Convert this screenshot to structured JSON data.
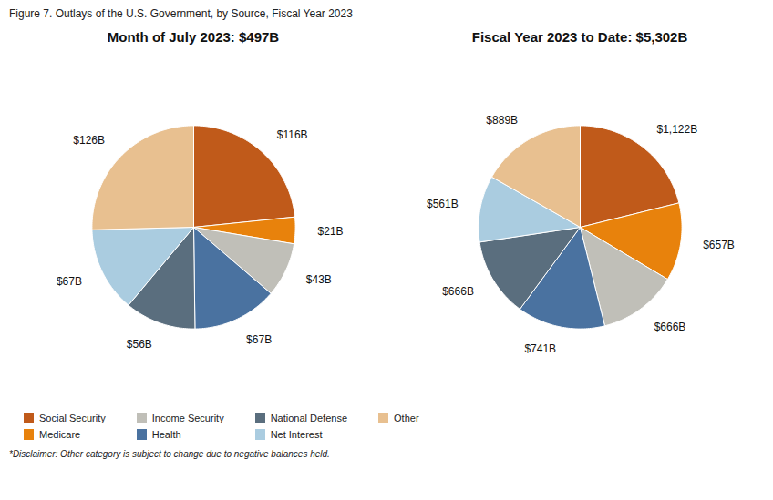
{
  "title": "Figure 7. Outlays of the U.S. Government, by Source, Fiscal Year 2023",
  "annotations": [
    "*Disclaimer: Other category is subject to change due to negative balances held."
  ],
  "chart_data": [
    {
      "type": "pie",
      "title": "Month of July 2023: $497B",
      "categories": [
        "Social Security",
        "Medicare",
        "Income Security",
        "Health",
        "National Defense",
        "Net Interest",
        "Other"
      ],
      "values": [
        116,
        21,
        43,
        67,
        56,
        67,
        126
      ],
      "value_labels": [
        "$116B",
        "$21B",
        "$43B",
        "$67B",
        "$56B",
        "$67B",
        "$126B"
      ],
      "colors": [
        "#C05A1A",
        "#E8820C",
        "#C0BFB8",
        "#4A72A0",
        "#5A6E7E",
        "#AACCE0",
        "#E8C090"
      ],
      "data_labels": true,
      "legend": "bottom"
    },
    {
      "type": "pie",
      "title": "Fiscal Year 2023 to Date: $5,302B",
      "categories": [
        "Social Security",
        "Medicare",
        "Income Security",
        "Health",
        "National Defense",
        "Net Interest",
        "Other"
      ],
      "values": [
        1122,
        657,
        666,
        741,
        666,
        561,
        889
      ],
      "value_labels": [
        "$1,122B",
        "$657B",
        "$666B",
        "$741B",
        "$666B",
        "$561B",
        "$889B"
      ],
      "colors": [
        "#C05A1A",
        "#E8820C",
        "#C0BFB8",
        "#4A72A0",
        "#5A6E7E",
        "#AACCE0",
        "#E8C090"
      ],
      "data_labels": true,
      "legend": "bottom"
    }
  ]
}
